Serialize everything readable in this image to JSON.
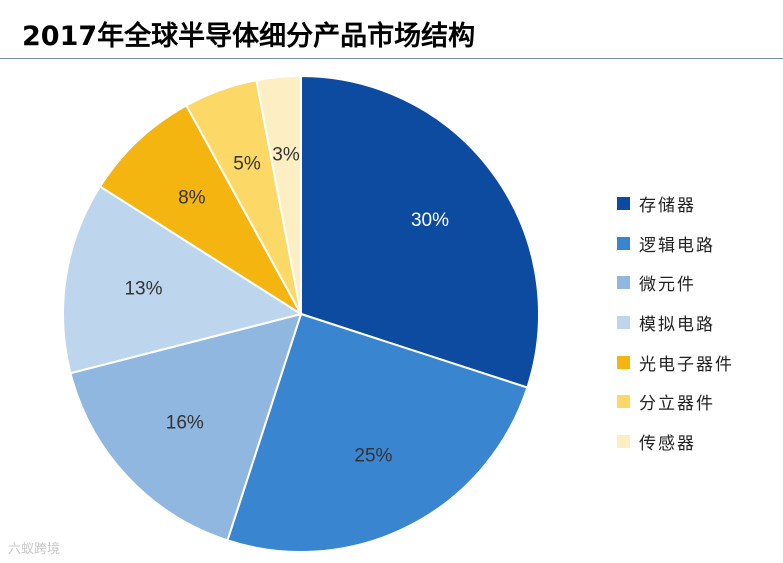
{
  "chart_data": {
    "type": "pie",
    "title": "2017年全球半导体细分产品市场结构",
    "categories": [
      "存储器",
      "逻辑电路",
      "微元件",
      "模拟电路",
      "光电子器件",
      "分立器件",
      "传感器"
    ],
    "values": [
      30,
      25,
      16,
      13,
      8,
      5,
      3
    ],
    "data_labels": [
      "30%",
      "25%",
      "16%",
      "13%",
      "8%",
      "5%",
      "3%"
    ],
    "colors": [
      "#0d4ba1",
      "#3a85cf",
      "#8fb7e0",
      "#bdd5ed",
      "#f5b511",
      "#fcd866",
      "#fdeec3"
    ],
    "label_colors": [
      "#ffffff",
      "#333333",
      "#333333",
      "#333333",
      "#333333",
      "#333333",
      "#333333"
    ],
    "start": "12 o'clock",
    "direction": "clockwise",
    "legend_position": "right"
  },
  "watermark": "六蚁跨境"
}
